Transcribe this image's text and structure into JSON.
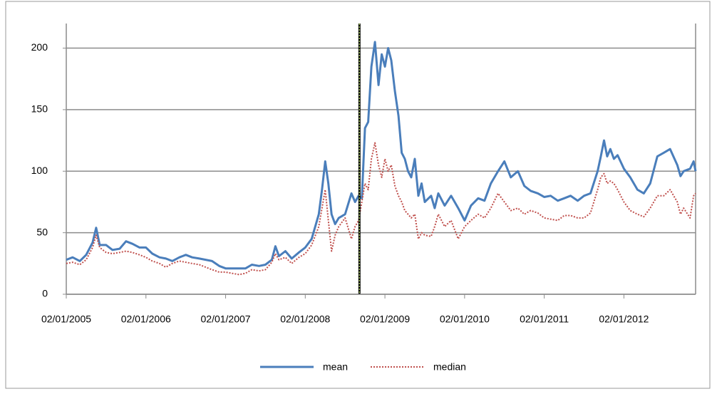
{
  "chart_data": {
    "type": "line",
    "x": [
      2005.0,
      2005.08,
      2005.17,
      2005.25,
      2005.33,
      2005.375,
      2005.42,
      2005.5,
      2005.58,
      2005.67,
      2005.75,
      2005.83,
      2005.92,
      2006.0,
      2006.08,
      2006.17,
      2006.25,
      2006.33,
      2006.42,
      2006.5,
      2006.58,
      2006.67,
      2006.75,
      2006.83,
      2006.92,
      2007.0,
      2007.08,
      2007.17,
      2007.25,
      2007.33,
      2007.42,
      2007.5,
      2007.58,
      2007.625,
      2007.67,
      2007.75,
      2007.83,
      2007.92,
      2008.0,
      2008.08,
      2008.17,
      2008.21,
      2008.25,
      2008.29,
      2008.33,
      2008.375,
      2008.42,
      2008.5,
      2008.58,
      2008.625,
      2008.67,
      2008.71,
      2008.75,
      2008.79,
      2008.83,
      2008.875,
      2008.92,
      2008.96,
      2009.0,
      2009.04,
      2009.08,
      2009.125,
      2009.17,
      2009.21,
      2009.25,
      2009.29,
      2009.33,
      2009.375,
      2009.42,
      2009.46,
      2009.5,
      2009.58,
      2009.625,
      2009.67,
      2009.75,
      2009.83,
      2009.92,
      2010.0,
      2010.08,
      2010.17,
      2010.25,
      2010.33,
      2010.42,
      2010.5,
      2010.58,
      2010.67,
      2010.75,
      2010.83,
      2010.92,
      2011.0,
      2011.08,
      2011.17,
      2011.25,
      2011.33,
      2011.42,
      2011.5,
      2011.58,
      2011.67,
      2011.71,
      2011.75,
      2011.79,
      2011.83,
      2011.875,
      2011.92,
      2012.0,
      2012.08,
      2012.17,
      2012.25,
      2012.33,
      2012.42,
      2012.5,
      2012.58,
      2012.67,
      2012.71,
      2012.75,
      2012.83,
      2012.875,
      2012.9
    ],
    "series": [
      {
        "name": "mean",
        "color": "#4a7ebb",
        "dash": "solid",
        "values": [
          28,
          30,
          27,
          32,
          42,
          54,
          40,
          40,
          36,
          37,
          43,
          41,
          38,
          38,
          33,
          30,
          29,
          27,
          30,
          32,
          30,
          29,
          28,
          27,
          23,
          21,
          21,
          21,
          21,
          24,
          23,
          24,
          28,
          39,
          31,
          35,
          29,
          34,
          38,
          45,
          65,
          85,
          108,
          90,
          65,
          57,
          62,
          65,
          82,
          75,
          80,
          78,
          135,
          140,
          185,
          205,
          170,
          195,
          185,
          200,
          190,
          165,
          145,
          115,
          110,
          100,
          95,
          110,
          80,
          90,
          75,
          80,
          70,
          82,
          72,
          80,
          70,
          60,
          72,
          78,
          76,
          90,
          100,
          108,
          95,
          100,
          88,
          84,
          82,
          79,
          80,
          76,
          78,
          80,
          76,
          80,
          82,
          100,
          112,
          125,
          112,
          118,
          110,
          113,
          102,
          95,
          85,
          82,
          90,
          112,
          115,
          118,
          105,
          96,
          100,
          102,
          108,
          100
        ]
      },
      {
        "name": "median",
        "color": "#c0504d",
        "dash": "dotted",
        "values": [
          25,
          26,
          24,
          28,
          38,
          48,
          38,
          34,
          33,
          34,
          35,
          34,
          32,
          30,
          27,
          25,
          22,
          25,
          27,
          26,
          25,
          24,
          22,
          20,
          18,
          18,
          17,
          16,
          17,
          20,
          19,
          20,
          26,
          33,
          28,
          30,
          25,
          30,
          33,
          40,
          55,
          70,
          85,
          60,
          35,
          48,
          55,
          62,
          45,
          55,
          60,
          75,
          90,
          85,
          110,
          123,
          105,
          95,
          110,
          100,
          105,
          88,
          80,
          75,
          68,
          65,
          62,
          65,
          45,
          50,
          48,
          47,
          55,
          65,
          55,
          60,
          45,
          55,
          60,
          65,
          62,
          70,
          82,
          75,
          68,
          70,
          65,
          68,
          66,
          62,
          61,
          60,
          64,
          64,
          62,
          62,
          66,
          85,
          95,
          98,
          90,
          92,
          90,
          85,
          75,
          68,
          65,
          63,
          70,
          80,
          80,
          85,
          75,
          65,
          70,
          62,
          80,
          82
        ]
      }
    ],
    "xlim": [
      2005,
      2012.9
    ],
    "xticks": [
      {
        "value": 2005,
        "label": "02/01/2005"
      },
      {
        "value": 2006,
        "label": "02/01/2006"
      },
      {
        "value": 2007,
        "label": "02/01/2007"
      },
      {
        "value": 2008,
        "label": "02/01/2008"
      },
      {
        "value": 2009,
        "label": "02/01/2009"
      },
      {
        "value": 2010,
        "label": "02/01/2010"
      },
      {
        "value": 2011,
        "label": "02/01/2011"
      },
      {
        "value": 2012,
        "label": "02/01/2012"
      }
    ],
    "ylim": [
      0,
      220
    ],
    "yticks": [
      0,
      50,
      100,
      150,
      200
    ],
    "grid": true,
    "event_line_x": 2008.68,
    "legend": "bottom"
  }
}
